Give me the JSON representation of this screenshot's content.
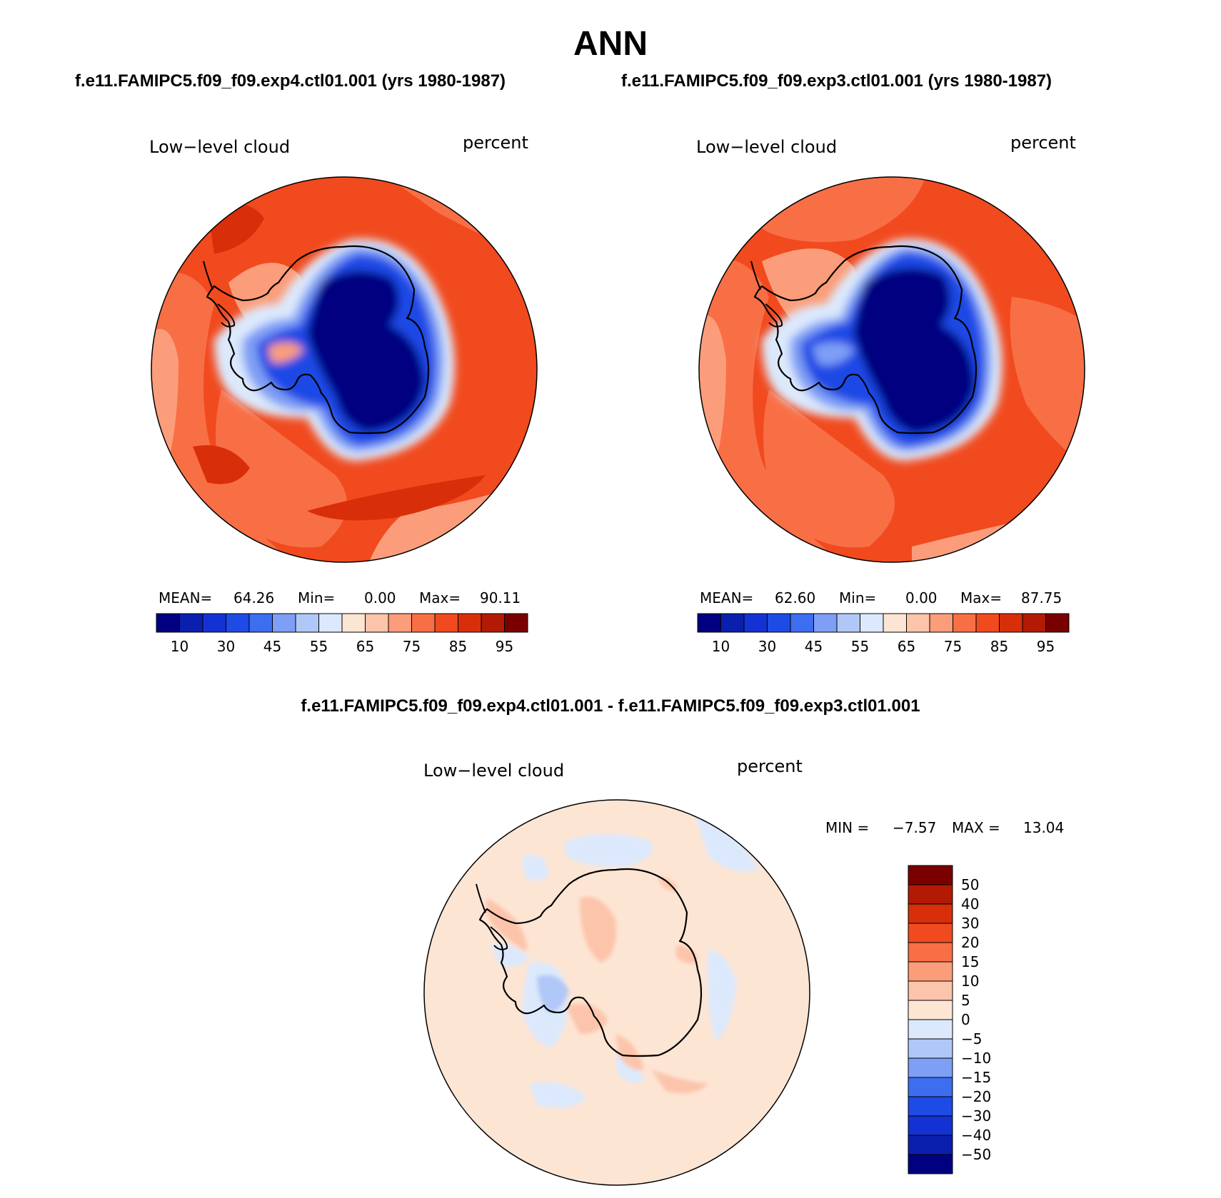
{
  "figure": {
    "title": "ANN",
    "case_a": "f.e11.FAMIPC5.f09_f09.exp4.ctl01.001 (yrs 1980-1987)",
    "case_b": "f.e11.FAMIPC5.f09_f09.exp3.ctl01.001 (yrs 1980-1987)",
    "diff_title": "f.e11.FAMIPC5.f09_f09.exp4.ctl01.001 - f.e11.FAMIPC5.f09_f09.exp3.ctl01.001"
  },
  "panels": [
    {
      "variable": "Low−level cloud",
      "units": "percent",
      "mean_label": "MEAN=",
      "mean": "64.26",
      "min_label": "Min=",
      "min": "0.00",
      "max_label": "Max=",
      "max": "90.11"
    },
    {
      "variable": "Low−level cloud",
      "units": "percent",
      "mean_label": "MEAN=",
      "mean": "62.60",
      "min_label": "Min=",
      "min": "0.00",
      "max_label": "Max=",
      "max": "87.75"
    }
  ],
  "diff_panel": {
    "variable": "Low−level cloud",
    "units": "percent",
    "min_label": "MIN =",
    "min": "−7.57",
    "max_label": "MAX =",
    "max": "13.04"
  },
  "colorbar_abs": {
    "colors": [
      "#000080",
      "#0a1fad",
      "#1432d4",
      "#1e4ae6",
      "#3d6ef0",
      "#7e9ff5",
      "#b0c8f8",
      "#dce9fc",
      "#fde5d4",
      "#fcc4aa",
      "#fb9d7a",
      "#f86f46",
      "#f14a1e",
      "#d82f0a",
      "#b21a05",
      "#7a0000"
    ],
    "ticks": [
      "10",
      "30",
      "45",
      "55",
      "65",
      "75",
      "85",
      "95"
    ]
  },
  "colorbar_diff": {
    "colors": [
      "#7a0000",
      "#b21a05",
      "#d82f0a",
      "#f14a1e",
      "#f86f46",
      "#fb9d7a",
      "#fcc4aa",
      "#fde5d4",
      "#dce9fc",
      "#b0c8f8",
      "#7e9ff5",
      "#3d6ef0",
      "#1e4ae6",
      "#1432d4",
      "#0a1fad",
      "#000080"
    ],
    "ticks": [
      "50",
      "40",
      "30",
      "20",
      "15",
      "10",
      "5",
      "0",
      "−5",
      "−10",
      "−15",
      "−20",
      "−30",
      "−40",
      "−50"
    ]
  },
  "map_colors": {
    "ocean_high": "#f14a1e",
    "ocean_mid": "#f86f46",
    "ocean_low": "#fb9d7a",
    "ocean_dark": "#d82f0a",
    "ice_core": "#000080",
    "ice_ring": "#1e4ae6",
    "ice_edge": "#7e9ff5",
    "ice_fringe": "#dce9fc",
    "diff_bg": "#fde5d4",
    "diff_pos": "#fcc4aa",
    "diff_neg": "#dce9fc",
    "diff_neg2": "#b0c8f8"
  }
}
